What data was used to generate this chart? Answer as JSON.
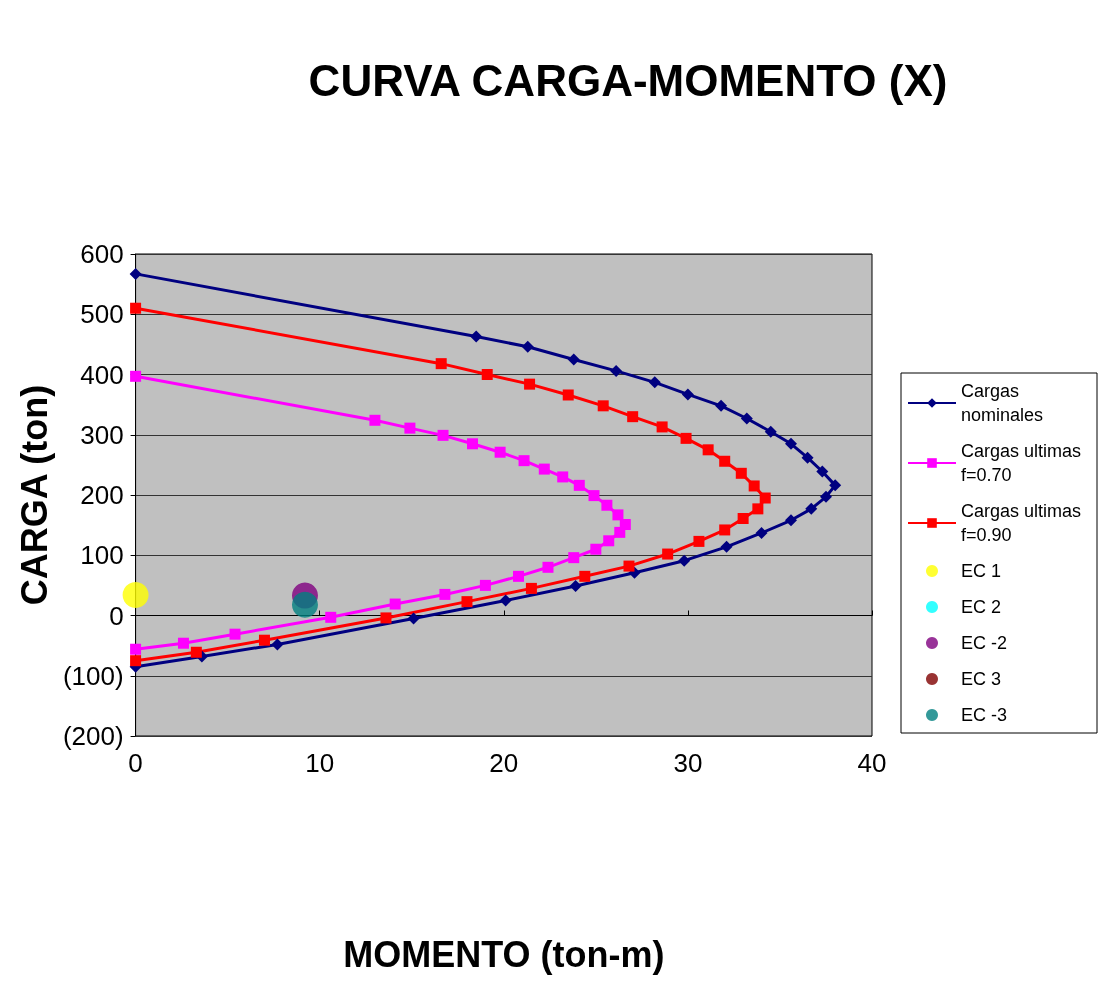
{
  "chart_data": {
    "type": "line",
    "title": "CURVA CARGA-MOMENTO (X)",
    "xlabel": "MOMENTO (ton-m)",
    "ylabel": "CARGA (ton)",
    "xlim": [
      0,
      40
    ],
    "xticks": [
      0,
      10,
      20,
      30,
      40
    ],
    "ylim": [
      -200,
      600
    ],
    "yticks": [
      {
        "value": -200,
        "label": "(200)"
      },
      {
        "value": -100,
        "label": "(100)"
      },
      0,
      100,
      200,
      300,
      400,
      500,
      600
    ],
    "grid": "y",
    "legend": "right",
    "line_style": "solid",
    "series": [
      {
        "name": "Cargas nominales",
        "color": "#000080",
        "marker": "diamond",
        "x": [
          0,
          3.6,
          7.7,
          15.1,
          20.1,
          23.9,
          27.1,
          29.8,
          32.1,
          34.0,
          35.6,
          36.7,
          37.5,
          38.0,
          37.3,
          36.5,
          35.6,
          34.5,
          33.2,
          31.8,
          30.0,
          28.2,
          26.1,
          23.8,
          21.3,
          18.5,
          0
        ],
        "values": [
          -85,
          -68,
          -48,
          -5,
          25,
          49,
          71,
          91,
          114,
          137,
          158,
          177,
          197,
          216,
          239,
          262,
          285,
          305,
          327,
          348,
          367,
          387,
          406,
          425,
          446,
          463,
          567
        ]
      },
      {
        "name": "Cargas ultimas f=0.70",
        "color": "#ff00ff",
        "marker": "square",
        "x": [
          0,
          2.6,
          5.4,
          10.6,
          14.1,
          16.8,
          19.0,
          20.8,
          22.4,
          23.8,
          25.0,
          25.7,
          26.3,
          26.6,
          26.2,
          25.6,
          24.9,
          24.1,
          23.2,
          22.2,
          21.1,
          19.8,
          18.3,
          16.7,
          14.9,
          13.0,
          0
        ],
        "values": [
          -56,
          -46,
          -31,
          -3,
          19,
          35,
          50,
          65,
          80,
          96,
          110,
          124,
          138,
          151,
          167,
          183,
          199,
          216,
          230,
          243,
          257,
          271,
          285,
          299,
          311,
          324,
          397
        ]
      },
      {
        "name": "Cargas ultimas f=0.90",
        "color": "#ff0000",
        "marker": "square",
        "x": [
          0,
          3.3,
          7.0,
          13.6,
          18.0,
          21.5,
          24.4,
          26.8,
          28.9,
          30.6,
          32.0,
          33.0,
          33.8,
          34.2,
          33.6,
          32.9,
          32.0,
          31.1,
          29.9,
          28.6,
          27.0,
          25.4,
          23.5,
          21.4,
          19.1,
          16.6,
          0
        ],
        "values": [
          -75,
          -61,
          -41,
          -4,
          23,
          45,
          65,
          82,
          102,
          123,
          142,
          161,
          177,
          195,
          215,
          236,
          256,
          275,
          294,
          313,
          330,
          348,
          366,
          384,
          400,
          418,
          510
        ]
      },
      {
        "name": "EC 1",
        "type": "scatter",
        "color": "#ffff00",
        "marker": "circle",
        "x": [
          0
        ],
        "values": [
          34
        ]
      },
      {
        "name": "EC 2",
        "type": "scatter",
        "color": "#00ffff",
        "marker": "circle",
        "values": [
          null
        ]
      },
      {
        "name": "EC -2",
        "type": "scatter",
        "color": "#800080",
        "marker": "circle",
        "x": [
          9.2
        ],
        "values": [
          33
        ]
      },
      {
        "name": "EC 3",
        "type": "scatter",
        "color": "#800000",
        "marker": "circle",
        "values": [
          null
        ]
      },
      {
        "name": "EC -3",
        "type": "scatter",
        "color": "#008080",
        "marker": "circle",
        "x": [
          9.2
        ],
        "values": [
          18
        ]
      }
    ]
  }
}
